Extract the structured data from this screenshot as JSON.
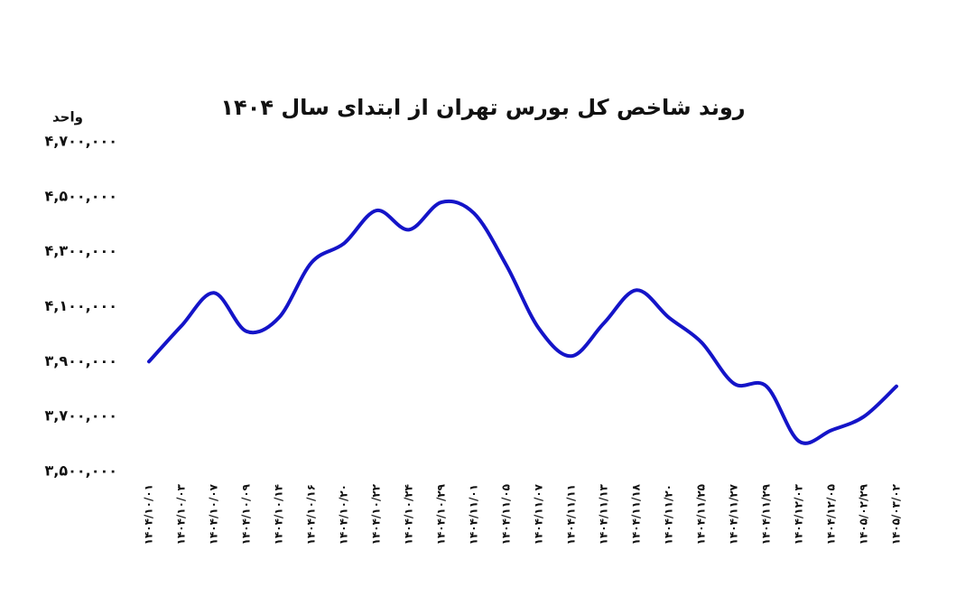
{
  "chart_data": {
    "type": "line",
    "title": "روند شاخص کل بورس تهران از ابتدای سال ۱۴۰۴",
    "y_label": "واحد",
    "categories": [
      "۱۴۰۴/۱۰/۰۱",
      "۱۴۰۴/۱۰/۰۳",
      "۱۴۰۴/۱۰/۰۷",
      "۱۴۰۴/۱۰/۰۹",
      "۱۴۰۴/۱۰/۱۴",
      "۱۴۰۴/۱۰/۱۶",
      "۱۴۰۴/۱۰/۲۰",
      "۱۴۰۴/۱۰/۲۲",
      "۱۴۰۴/۱۰/۲۴",
      "۱۴۰۴/۱۰/۲۹",
      "۱۴۰۴/۱۱/۰۱",
      "۱۴۰۴/۱۱/۰۵",
      "۱۴۰۴/۱۱/۰۷",
      "۱۴۰۴/۱۱/۱۱",
      "۱۴۰۴/۱۱/۱۳",
      "۱۴۰۴/۱۱/۱۸",
      "۱۴۰۴/۱۱/۲۰",
      "۱۴۰۴/۱۱/۲۵",
      "۱۴۰۴/۱۱/۲۷",
      "۱۴۰۴/۱۱/۲۹",
      "۱۴۰۴/۱۲/۰۳",
      "۱۴۰۴/۱۲/۰۵",
      "۱۴۰۵/۰۲/۲۹",
      "۱۴۰۵/۰۳/۰۲"
    ],
    "values": [
      3900000,
      4030000,
      4150000,
      4010000,
      4060000,
      4260000,
      4330000,
      4450000,
      4380000,
      4480000,
      4440000,
      4250000,
      4020000,
      3920000,
      4040000,
      4160000,
      4060000,
      3970000,
      3820000,
      3810000,
      3610000,
      3650000,
      3700000,
      3810000
    ],
    "color": "#1414c8",
    "ylim": [
      3500000,
      4700000
    ],
    "yticks": [
      {
        "value": 3500000,
        "label": "۳,۵۰۰,۰۰۰"
      },
      {
        "value": 3700000,
        "label": "۳,۷۰۰,۰۰۰"
      },
      {
        "value": 3900000,
        "label": "۳,۹۰۰,۰۰۰"
      },
      {
        "value": 4100000,
        "label": "۴,۱۰۰,۰۰۰"
      },
      {
        "value": 4300000,
        "label": "۴,۳۰۰,۰۰۰"
      },
      {
        "value": 4500000,
        "label": "۴,۵۰۰,۰۰۰"
      },
      {
        "value": 4700000,
        "label": "۴,۷۰۰,۰۰۰"
      }
    ],
    "grid": false
  }
}
